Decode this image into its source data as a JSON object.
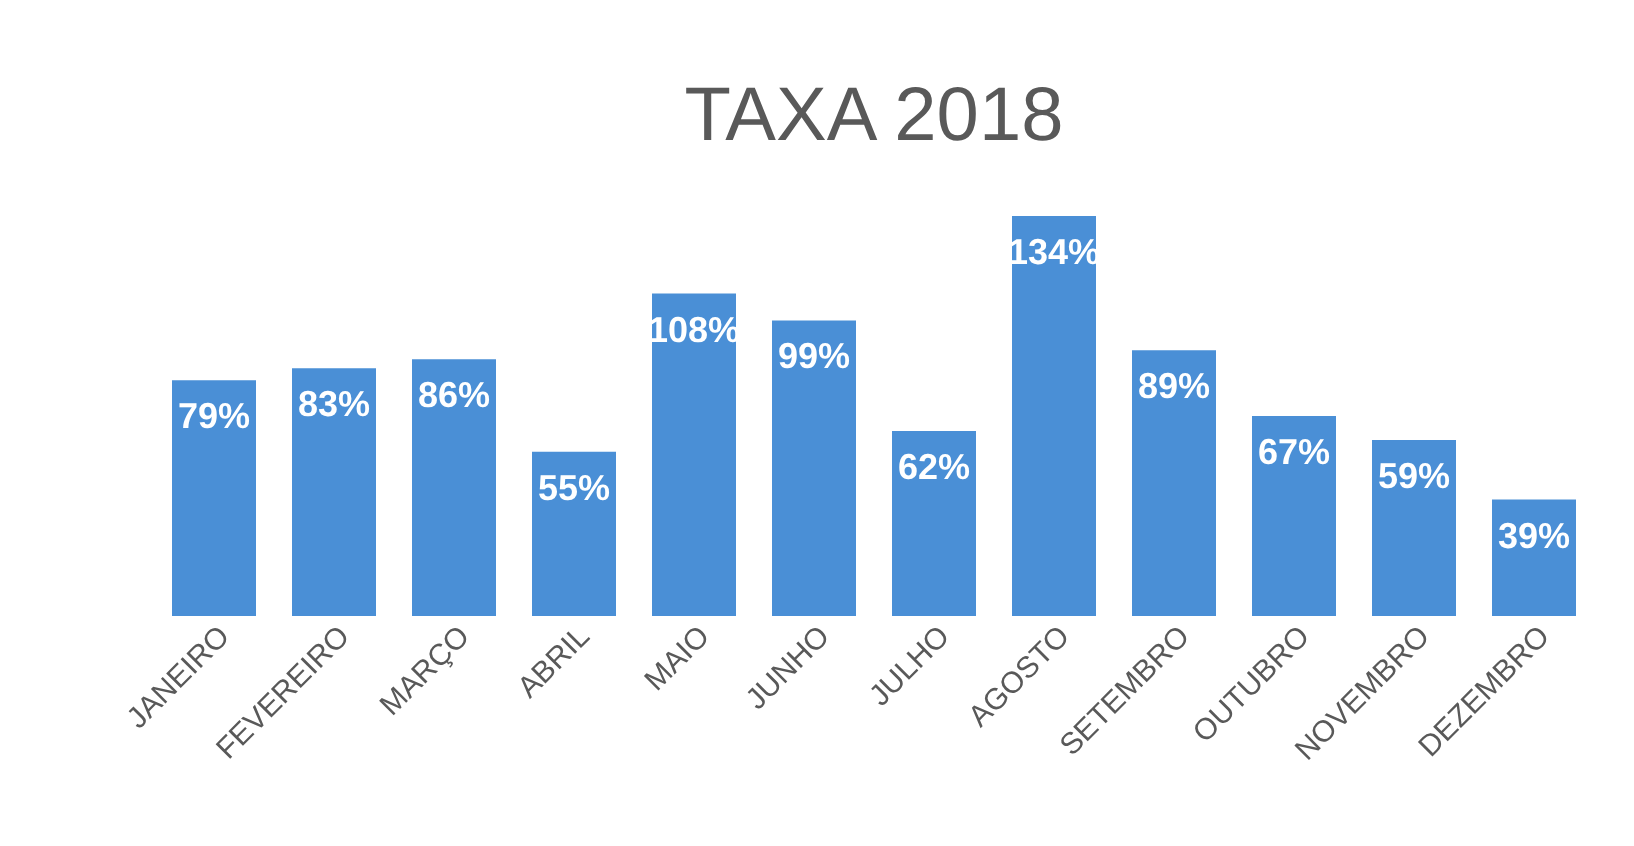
{
  "chart_data": {
    "type": "bar",
    "title": "TAXA 2018",
    "categories": [
      "JANEIRO",
      "FEVEREIRO",
      "MARÇO",
      "ABRIL",
      "MAIO",
      "JUNHO",
      "JULHO",
      "AGOSTO",
      "SETEMBRO",
      "OUTUBRO",
      "NOVEMBRO",
      "DEZEMBRO"
    ],
    "values": [
      79,
      83,
      86,
      55,
      108,
      99,
      62,
      134,
      89,
      67,
      59,
      39
    ],
    "value_labels": [
      "79%",
      "83%",
      "86%",
      "55%",
      "108%",
      "99%",
      "62%",
      "134%",
      "89%",
      "67%",
      "59%",
      "39%"
    ],
    "color": "#4a8fd6"
  }
}
